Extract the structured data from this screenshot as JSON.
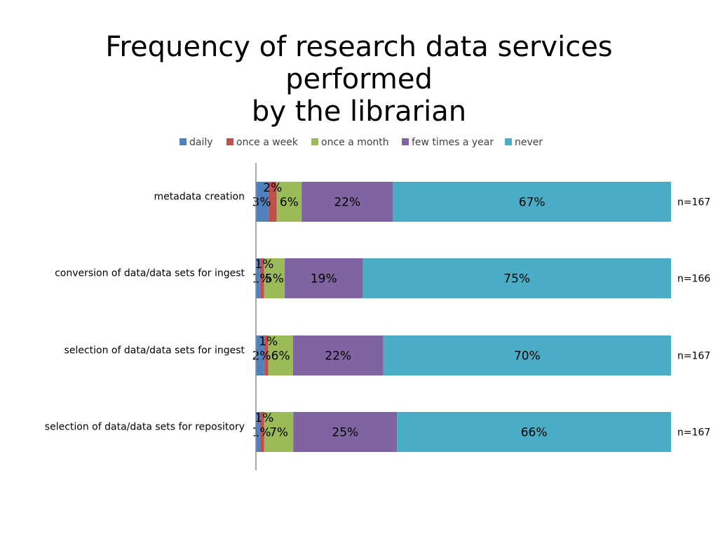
{
  "slide": {
    "title_line1": "Frequency of research data services performed",
    "title_line2": "by the librarian"
  },
  "chart_data": {
    "type": "bar",
    "orientation": "horizontal",
    "stacked": true,
    "percent_stacked": true,
    "title": "Frequency of research data services performed by the librarian",
    "categories": [
      "metadata creation",
      "conversion of data/data sets for ingest",
      "selection of data/data sets for ingest",
      "selection of data/data sets for repository"
    ],
    "sample_sizes": [
      "n=167",
      "n=166",
      "n=167",
      "n=167"
    ],
    "series": [
      {
        "name": "daily",
        "color": "#4F81BD",
        "values": [
          3,
          1,
          2,
          1
        ],
        "labels": [
          "3%",
          "1%",
          "2%",
          "1%"
        ]
      },
      {
        "name": "once a week",
        "color": "#C0504D",
        "values": [
          2,
          1,
          1,
          1
        ],
        "labels": [
          "2%",
          "1%",
          "1%",
          "1%"
        ]
      },
      {
        "name": "once a month",
        "color": "#9BBB59",
        "values": [
          6,
          5,
          6,
          7
        ],
        "labels": [
          "6%",
          "5%",
          "6%",
          "7%"
        ]
      },
      {
        "name": "few times a year",
        "color": "#8064A2",
        "values": [
          22,
          19,
          22,
          25
        ],
        "labels": [
          "22%",
          "19%",
          "22%",
          "25%"
        ]
      },
      {
        "name": "never",
        "color": "#4BACC6",
        "values": [
          67,
          75,
          70,
          66
        ],
        "labels": [
          "67%",
          "75%",
          "70%",
          "66%"
        ]
      }
    ],
    "legend_position": "top",
    "grid": false
  }
}
